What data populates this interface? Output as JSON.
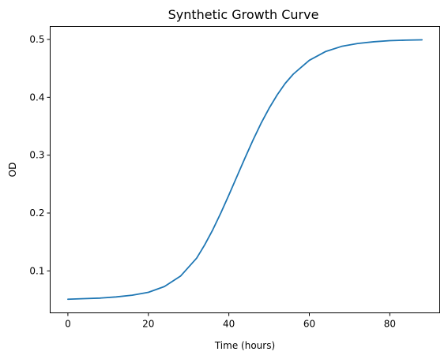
{
  "chart_data": {
    "type": "line",
    "title": "Synthetic Growth Curve",
    "xlabel": "Time (hours)",
    "ylabel": "OD",
    "xlim": [
      -4.4,
      92.4
    ],
    "ylim": [
      0.0275,
      0.5225
    ],
    "xticks": [
      0,
      20,
      40,
      60,
      80
    ],
    "xtick_labels": [
      "0",
      "20",
      "40",
      "60",
      "80"
    ],
    "yticks": [
      0.1,
      0.2,
      0.3,
      0.4,
      0.5
    ],
    "ytick_labels": [
      "0.1",
      "0.2",
      "0.3",
      "0.4",
      "0.5"
    ],
    "grid": false,
    "legend": "none",
    "series": [
      {
        "color": "#1f77b4",
        "x": [
          0,
          4,
          8,
          12,
          16,
          20,
          24,
          28,
          32,
          34,
          36,
          38,
          40,
          42,
          44,
          46,
          48,
          50,
          52,
          54,
          56,
          60,
          64,
          68,
          72,
          76,
          80,
          84,
          88
        ],
        "y": [
          0.051,
          0.052,
          0.053,
          0.055,
          0.058,
          0.063,
          0.073,
          0.091,
          0.122,
          0.145,
          0.171,
          0.2,
          0.231,
          0.263,
          0.295,
          0.326,
          0.355,
          0.381,
          0.404,
          0.424,
          0.44,
          0.464,
          0.479,
          0.488,
          0.493,
          0.496,
          0.498,
          0.4988,
          0.4993
        ]
      }
    ]
  }
}
